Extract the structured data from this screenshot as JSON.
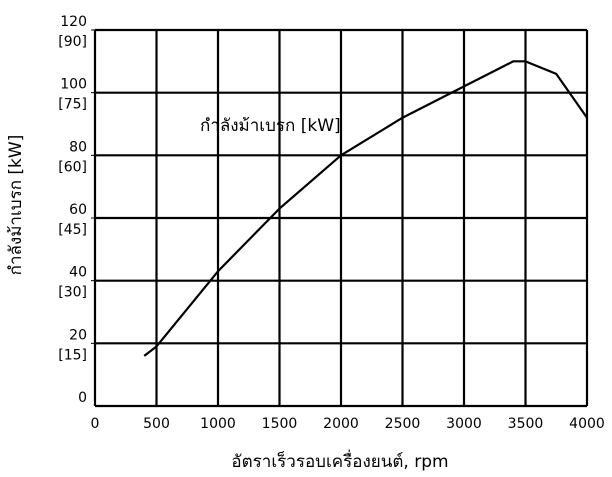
{
  "chart_data": {
    "type": "line",
    "annotation": "กำลังม้าเบรก [kW]",
    "x_label": "อัตราเร็วรอบเครื่องยนต์, rpm",
    "y_label": "กำลังม้าเบรก [kW]",
    "x": [
      400,
      500,
      1000,
      1500,
      2000,
      2500,
      3000,
      3400,
      3500,
      3750,
      4000
    ],
    "series": [
      {
        "color": "#000000",
        "values": [
          16,
          19,
          43,
          63,
          80,
          92,
          102,
          110,
          110,
          106,
          92
        ]
      }
    ],
    "xlim": [
      0,
      4000
    ],
    "xticks": [
      0,
      500,
      1000,
      1500,
      2000,
      2500,
      3000,
      3500,
      4000
    ],
    "ylim": [
      0,
      120
    ],
    "yticks": [
      0,
      20,
      40,
      60,
      80,
      100,
      120
    ],
    "ykw_ticks": [
      {
        "value": 20,
        "label": "[15]"
      },
      {
        "value": 40,
        "label": "[30]"
      },
      {
        "value": 60,
        "label": "[45]"
      },
      {
        "value": 80,
        "label": "[60]"
      },
      {
        "value": 100,
        "label": "[75]"
      },
      {
        "value": 120,
        "label": "[90]"
      }
    ],
    "grid": true
  }
}
